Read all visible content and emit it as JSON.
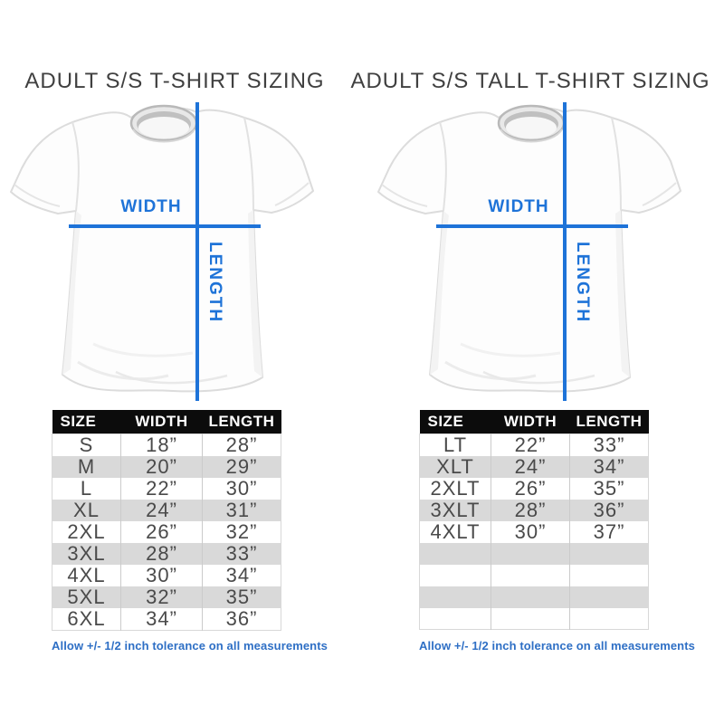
{
  "colors": {
    "accent_blue": "#1e73d8",
    "footnote_blue": "#2e6fc5",
    "table_header_bg": "#0c0c0c",
    "table_header_text": "#ffffff",
    "row_alt_gray": "#d9d9d9",
    "title_text": "#404040",
    "cell_text": "#4a4a4a"
  },
  "chart_data": [
    {
      "type": "table",
      "title": "ADULT S/S T-SHIRT SIZING",
      "columns": [
        "SIZE",
        "WIDTH",
        "LENGTH"
      ],
      "rows": [
        [
          "S",
          "18”",
          "28”"
        ],
        [
          "M",
          "20”",
          "29”"
        ],
        [
          "L",
          "22”",
          "30”"
        ],
        [
          "XL",
          "24”",
          "31”"
        ],
        [
          "2XL",
          "26”",
          "32”"
        ],
        [
          "3XL",
          "28”",
          "33”"
        ],
        [
          "4XL",
          "30”",
          "34”"
        ],
        [
          "5XL",
          "32”",
          "35”"
        ],
        [
          "6XL",
          "34”",
          "36”"
        ]
      ],
      "empty_rows": 0,
      "units": "inches",
      "annotations": {
        "width_label": "WIDTH",
        "length_label": "LENGTH"
      },
      "footnote": "Allow +/- 1/2 inch tolerance on all measurements"
    },
    {
      "type": "table",
      "title": "ADULT S/S TALL T-SHIRT SIZING",
      "columns": [
        "SIZE",
        "WIDTH",
        "LENGTH"
      ],
      "rows": [
        [
          "LT",
          "22”",
          "33”"
        ],
        [
          "XLT",
          "24”",
          "34”"
        ],
        [
          "2XLT",
          "26”",
          "35”"
        ],
        [
          "3XLT",
          "28”",
          "36”"
        ],
        [
          "4XLT",
          "30”",
          "37”"
        ]
      ],
      "empty_rows": 4,
      "units": "inches",
      "annotations": {
        "width_label": "WIDTH",
        "length_label": "LENGTH"
      },
      "footnote": "Allow +/- 1/2 inch tolerance on all measurements"
    }
  ]
}
